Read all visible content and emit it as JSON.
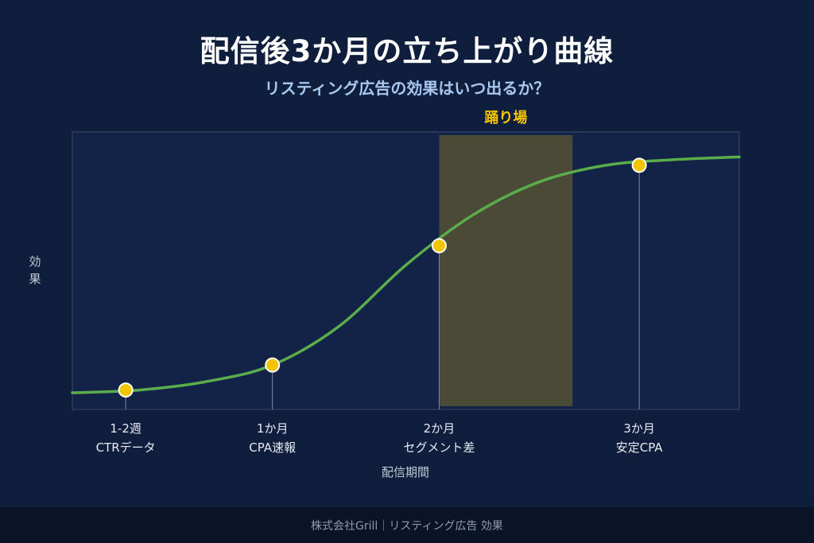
{
  "header": {
    "title": "配信後3か月の立ち上がり曲線",
    "subtitle": "リスティング広告の効果はいつ出るか？"
  },
  "colors": {
    "background": "#0f1e3c",
    "plot_bg": "#132247",
    "curve": "#5aad4a",
    "point": "#f3c400",
    "plateau_band": "#4a4a37",
    "plateau_label": "#f3c400"
  },
  "chart_data": {
    "type": "line",
    "ylabel": "効果",
    "xlabel": "配信期間",
    "xlim": [
      0,
      100
    ],
    "ylim": [
      0,
      100
    ],
    "grid": false,
    "curve": [
      {
        "x": 0,
        "y": 6
      },
      {
        "x": 10,
        "y": 7
      },
      {
        "x": 20,
        "y": 10
      },
      {
        "x": 30,
        "y": 16
      },
      {
        "x": 40,
        "y": 30
      },
      {
        "x": 50,
        "y": 52
      },
      {
        "x": 60,
        "y": 70
      },
      {
        "x": 70,
        "y": 82
      },
      {
        "x": 80,
        "y": 88
      },
      {
        "x": 90,
        "y": 90
      },
      {
        "x": 100,
        "y": 91
      }
    ],
    "points": [
      {
        "x": 8,
        "line1": "1-2週",
        "line2": "CTRデータ",
        "y": 7
      },
      {
        "x": 30,
        "line1": "1か月",
        "line2": "CPA速報",
        "y": 16
      },
      {
        "x": 55,
        "line1": "2か月",
        "line2": "セグメント差",
        "y": 59
      },
      {
        "x": 85,
        "line1": "3か月",
        "line2": "安定CPA",
        "y": 88
      }
    ],
    "plateau": {
      "label": "踊り場",
      "x_start": 55,
      "x_end": 75
    }
  },
  "footer": {
    "text": "株式会社Grill｜リスティング広告 効果"
  }
}
